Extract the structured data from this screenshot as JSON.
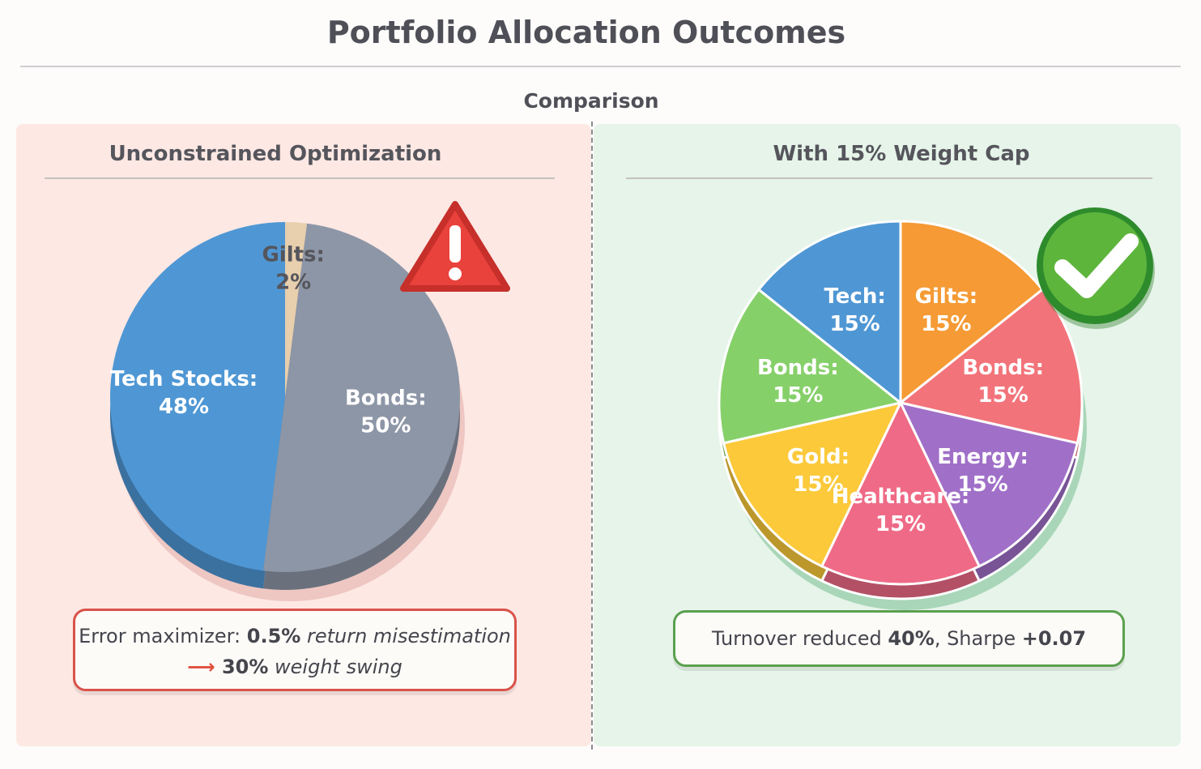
{
  "title": "Portfolio Allocation Outcomes",
  "subtitle": "Comparison",
  "left": {
    "heading": "Unconstrained Optimization",
    "icon": "warning-triangle-icon",
    "callout": {
      "prefix": "Error maximizer: ",
      "bold1": "0.5%",
      "italic1": " return misestimation",
      "bold2": "30%",
      "italic2": " weight swing"
    }
  },
  "right": {
    "heading": "With 15% Weight Cap",
    "icon": "check-circle-icon",
    "callout": {
      "prefix": "Turnover reduced ",
      "bold1": "40%",
      "mid": ", Sharpe ",
      "bold2": "+0.07"
    }
  },
  "chart_data": [
    {
      "type": "pie",
      "title": "Unconstrained Optimization",
      "slices": [
        {
          "name": "Gilts:",
          "value": 2,
          "label": "2%",
          "color": "#e8cfad",
          "text": "#55555c"
        },
        {
          "name": "Bonds:",
          "value": 50,
          "label": "50%",
          "color": "#8d96a6",
          "text": "#ffffff"
        },
        {
          "name": "Tech Stocks:",
          "value": 48,
          "label": "48%",
          "color": "#4f97d4",
          "text": "#ffffff"
        }
      ]
    },
    {
      "type": "pie",
      "title": "With 15% Weight Cap",
      "slices": [
        {
          "name": "Gilts:",
          "value": 15,
          "label": "15%",
          "color": "#f59a34",
          "text": "#ffffff"
        },
        {
          "name": "Bonds:",
          "value": 15,
          "label": "15%",
          "color": "#f2737a",
          "text": "#ffffff"
        },
        {
          "name": "Energy:",
          "value": 15,
          "label": "15%",
          "color": "#a070c8",
          "text": "#ffffff"
        },
        {
          "name": "Healthcare:",
          "value": 15,
          "label": "15%",
          "color": "#ef6a86",
          "text": "#ffffff"
        },
        {
          "name": "Gold:",
          "value": 15,
          "label": "15%",
          "color": "#fbc93a",
          "text": "#ffffff"
        },
        {
          "name": "Bonds:",
          "value": 15,
          "label": "15%",
          "color": "#86d06a",
          "text": "#ffffff"
        },
        {
          "name": "Tech:",
          "value": 15,
          "label": "15%",
          "color": "#4f97d4",
          "text": "#ffffff"
        }
      ]
    }
  ]
}
